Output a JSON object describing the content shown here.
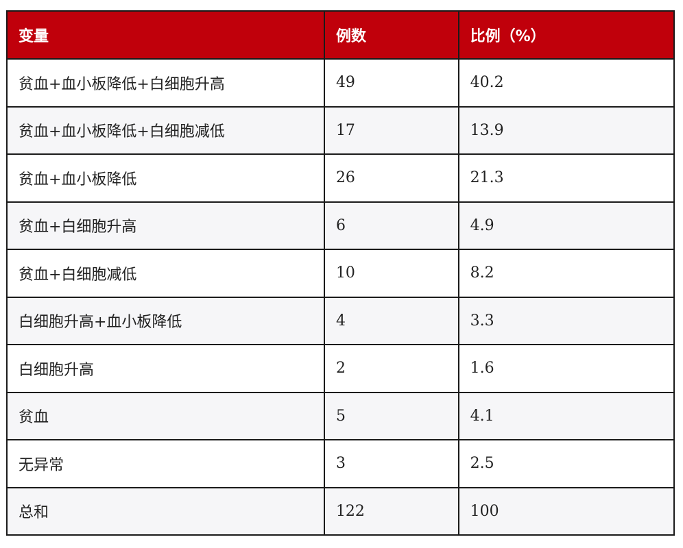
{
  "table": {
    "header_color": "#c0000b",
    "headers": [
      "变量",
      "例数",
      "比例（%）"
    ],
    "rows": [
      {
        "variable": "贫血+血小板降低+白细胞升高",
        "count": "49",
        "percent": "40.2"
      },
      {
        "variable": "贫血+血小板降低+白细胞减低",
        "count": "17",
        "percent": "13.9"
      },
      {
        "variable": "贫血+血小板降低",
        "count": "26",
        "percent": "21.3"
      },
      {
        "variable": "贫血+白细胞升高",
        "count": "6",
        "percent": "4.9"
      },
      {
        "variable": "贫血+白细胞减低",
        "count": "10",
        "percent": "8.2"
      },
      {
        "variable": "白细胞升高+血小板降低",
        "count": "4",
        "percent": "3.3"
      },
      {
        "variable": "白细胞升高",
        "count": "2",
        "percent": "1.6"
      },
      {
        "variable": "贫血",
        "count": "5",
        "percent": "4.1"
      },
      {
        "variable": "无异常",
        "count": "3",
        "percent": "2.5"
      },
      {
        "variable": "总和",
        "count": "122",
        "percent": "100"
      }
    ]
  }
}
